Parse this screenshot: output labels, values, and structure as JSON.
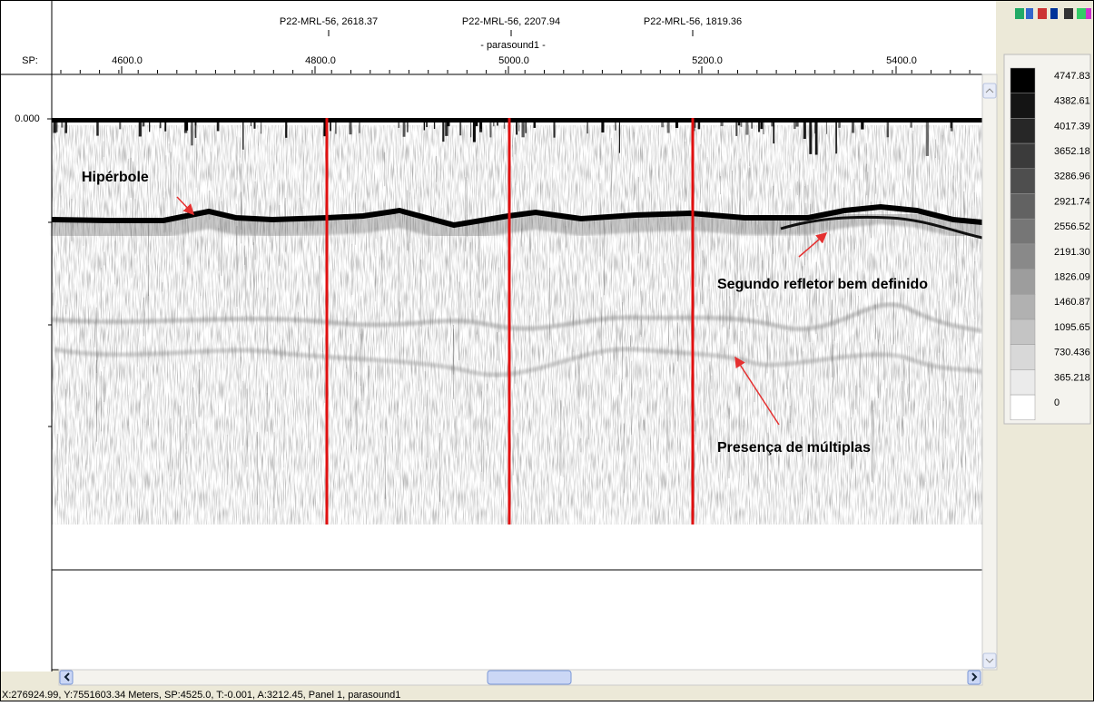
{
  "ruler": {
    "sp_label": "SP:",
    "wells": [
      "P22-MRL-56, 2618.37",
      "P22-MRL-56, 2207.94",
      "P22-MRL-56, 1819.36"
    ],
    "line_name": "- parasound1 -",
    "sp_ticks": [
      "4600.0",
      "4800.0",
      "5000.0",
      "5200.0",
      "5400.0"
    ]
  },
  "time_axis": {
    "labels": [
      "0.000"
    ]
  },
  "annotations": [
    "Hipérbole",
    "Segundo refletor bem definido",
    "Presença de múltiplas"
  ],
  "color_scale": {
    "labels": [
      "4747.83",
      "4382.61",
      "4017.39",
      "3652.18",
      "3286.96",
      "2921.74",
      "2556.52",
      "2191.30",
      "1826.09",
      "1460.87",
      "1095.65",
      "730.436",
      "365.218",
      "0"
    ]
  },
  "status_bar": {
    "text": "X:276924.99, Y:7551603.34 Meters, SP:4525.0, T:-0.001, A:3212.45, Panel 1, parasound1"
  }
}
